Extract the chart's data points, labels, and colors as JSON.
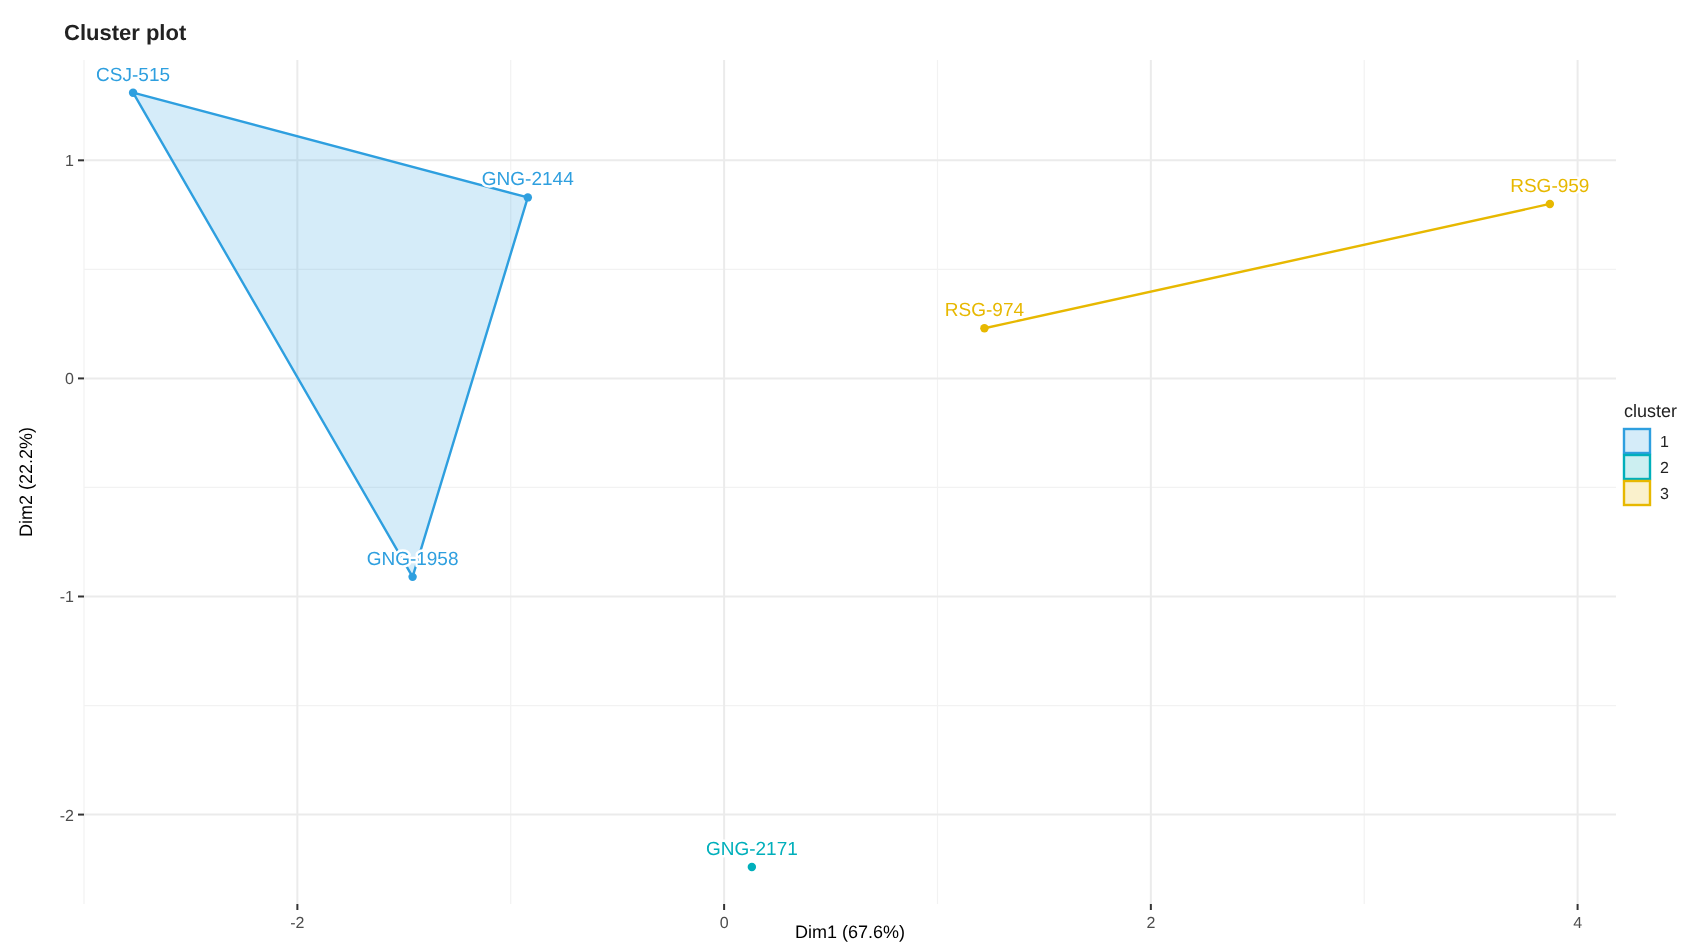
{
  "chart_data": {
    "type": "scatter",
    "title": "Cluster plot",
    "xlabel": "Dim1 (67.6%)",
    "ylabel": "Dim2 (22.2%)",
    "legend_title": "cluster",
    "xlim": [
      -3.0,
      4.18
    ],
    "ylim": [
      -2.41,
      1.46
    ],
    "xticks": [
      -2,
      0,
      2,
      4
    ],
    "yticks": [
      -2,
      -1,
      0,
      1
    ],
    "grid": true,
    "legend": "right",
    "marker": "circle",
    "series": [
      {
        "name": "1",
        "color": "#2e9fdf",
        "x": [
          -2.77,
          -0.92,
          -1.46
        ],
        "values": [
          1.31,
          0.83,
          -0.91
        ]
      },
      {
        "name": "2",
        "color": "#00afbb",
        "x": [
          0.13
        ],
        "values": [
          -2.24
        ]
      },
      {
        "name": "3",
        "color": "#e7b800",
        "x": [
          1.22,
          3.87
        ],
        "values": [
          0.23,
          0.8
        ]
      },
      {
        "type": "area",
        "marker": "none",
        "color": "#2e9fdf",
        "x": [
          -2.77,
          -0.92,
          -1.46,
          -2.77
        ],
        "values": [
          1.31,
          0.83,
          -0.91,
          1.31
        ]
      },
      {
        "type": "line",
        "marker": "none",
        "color": "#e7b800",
        "x": [
          1.22,
          3.87
        ],
        "values": [
          0.23,
          0.8
        ]
      }
    ],
    "annotations": [
      {
        "text": "CSJ-515",
        "x": -2.77,
        "y": 1.31
      },
      {
        "text": "GNG-2144",
        "x": -0.92,
        "y": 0.83
      },
      {
        "text": "GNG-1958",
        "x": -1.46,
        "y": -0.91
      },
      {
        "text": "GNG-2171",
        "x": 0.13,
        "y": -2.24
      },
      {
        "text": "RSG-974",
        "x": 1.22,
        "y": 0.23
      },
      {
        "text": "RSG-959",
        "x": 3.87,
        "y": 0.8
      }
    ]
  }
}
